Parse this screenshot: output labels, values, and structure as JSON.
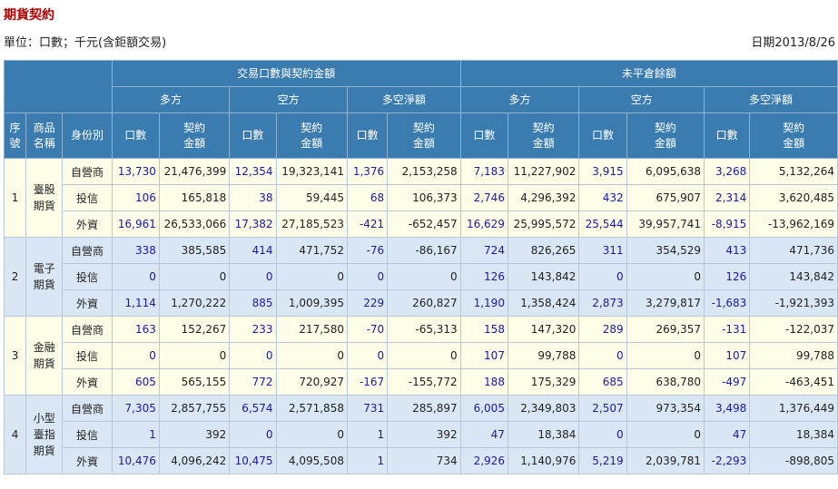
{
  "page": {
    "title": "期貨契約",
    "unit_note": "單位：口數；千元(含鉅額交易)",
    "date_label": "日期2013/8/26"
  },
  "header": {
    "group_trade": "交易口數與契約金額",
    "group_open": "未平倉餘額",
    "long": "多方",
    "short": "空方",
    "net": "多空淨額",
    "seq": "序號",
    "product": "商品名稱",
    "identity": "身份別",
    "lots": "口數",
    "amount": "契約金額"
  },
  "rows": [
    {
      "seq": "1",
      "product": "臺股期貨",
      "identity": "自營商",
      "tl": "13,730",
      "tla": "21,476,399",
      "ts": "12,354",
      "tsa": "19,323,141",
      "tn": "1,376",
      "tna": "2,153,258",
      "ol": "7,183",
      "ola": "11,227,902",
      "os": "3,915",
      "osa": "6,095,638",
      "on": "3,268",
      "ona": "5,132,264"
    },
    {
      "identity": "投信",
      "tl": "106",
      "tla": "165,818",
      "ts": "38",
      "tsa": "59,445",
      "tn": "68",
      "tna": "106,373",
      "ol": "2,746",
      "ola": "4,296,392",
      "os": "432",
      "osa": "675,907",
      "on": "2,314",
      "ona": "3,620,485"
    },
    {
      "identity": "外資",
      "tl": "16,961",
      "tla": "26,533,066",
      "ts": "17,382",
      "tsa": "27,185,523",
      "tn": "-421",
      "tna": "-652,457",
      "ol": "16,629",
      "ola": "25,995,572",
      "os": "25,544",
      "osa": "39,957,741",
      "on": "-8,915",
      "ona": "-13,962,169"
    },
    {
      "seq": "2",
      "product": "電子期貨",
      "identity": "自營商",
      "tl": "338",
      "tla": "385,585",
      "ts": "414",
      "tsa": "471,752",
      "tn": "-76",
      "tna": "-86,167",
      "ol": "724",
      "ola": "826,265",
      "os": "311",
      "osa": "354,529",
      "on": "413",
      "ona": "471,736"
    },
    {
      "identity": "投信",
      "tl": "0",
      "tla": "0",
      "ts": "0",
      "tsa": "0",
      "tn": "0",
      "tna": "0",
      "ol": "126",
      "ola": "143,842",
      "os": "0",
      "osa": "0",
      "on": "126",
      "ona": "143,842"
    },
    {
      "identity": "外資",
      "tl": "1,114",
      "tla": "1,270,222",
      "ts": "885",
      "tsa": "1,009,395",
      "tn": "229",
      "tna": "260,827",
      "ol": "1,190",
      "ola": "1,358,424",
      "os": "2,873",
      "osa": "3,279,817",
      "on": "-1,683",
      "ona": "-1,921,393"
    },
    {
      "seq": "3",
      "product": "金融期貨",
      "identity": "自營商",
      "tl": "163",
      "tla": "152,267",
      "ts": "233",
      "tsa": "217,580",
      "tn": "-70",
      "tna": "-65,313",
      "ol": "158",
      "ola": "147,320",
      "os": "289",
      "osa": "269,357",
      "on": "-131",
      "ona": "-122,037"
    },
    {
      "identity": "投信",
      "tl": "0",
      "tla": "0",
      "ts": "0",
      "tsa": "0",
      "tn": "0",
      "tna": "0",
      "ol": "107",
      "ola": "99,788",
      "os": "0",
      "osa": "0",
      "on": "107",
      "ona": "99,788"
    },
    {
      "identity": "外資",
      "tl": "605",
      "tla": "565,155",
      "ts": "772",
      "tsa": "720,927",
      "tn": "-167",
      "tna": "-155,772",
      "ol": "188",
      "ola": "175,329",
      "os": "685",
      "osa": "638,780",
      "on": "-497",
      "ona": "-463,451"
    },
    {
      "seq": "4",
      "product": "小型臺指期貨",
      "identity": "自營商",
      "tl": "7,305",
      "tla": "2,857,755",
      "ts": "6,574",
      "tsa": "2,571,858",
      "tn": "731",
      "tna": "285,897",
      "ol": "6,005",
      "ola": "2,349,803",
      "os": "2,507",
      "osa": "973,354",
      "on": "3,498",
      "ona": "1,376,449"
    },
    {
      "identity": "投信",
      "tl": "1",
      "tla": "392",
      "ts": "0",
      "tsa": "0",
      "tn": "1",
      "tna": "392",
      "ol": "47",
      "ola": "18,384",
      "os": "0",
      "osa": "0",
      "on": "47",
      "ona": "18,384"
    },
    {
      "identity": "外資",
      "tl": "10,476",
      "tla": "4,096,242",
      "ts": "10,475",
      "tsa": "4,095,508",
      "tn": "1",
      "tna": "734",
      "ol": "2,926",
      "ola": "1,140,976",
      "os": "5,219",
      "osa": "2,039,781",
      "on": "-2,293",
      "ona": "-898,805"
    }
  ]
}
